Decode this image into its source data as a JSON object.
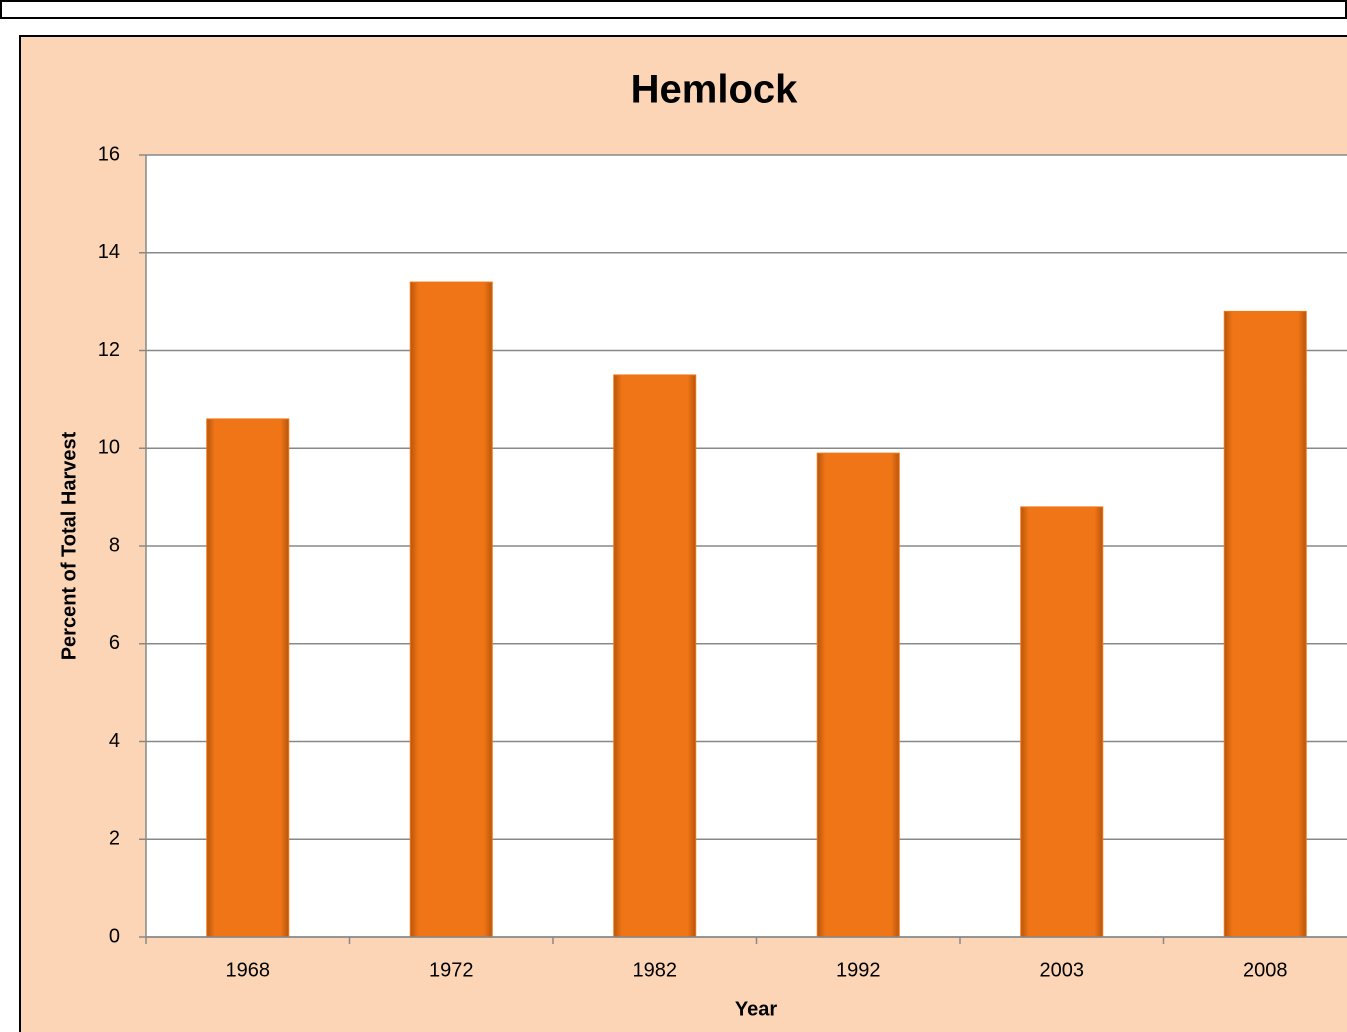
{
  "chart_data": {
    "type": "bar",
    "title": "Hemlock",
    "x_label": "Year",
    "y_label": "Percent of Total Harvest",
    "categories": [
      "1968",
      "1972",
      "1982",
      "1992",
      "2003",
      "2008"
    ],
    "values": [
      10.6,
      13.4,
      11.5,
      9.9,
      8.8,
      12.8
    ],
    "color": "#f07516",
    "ylim": [
      0,
      16
    ],
    "yticks": [
      0,
      2,
      4,
      6,
      8,
      10,
      12,
      14,
      16
    ],
    "grid": true
  }
}
